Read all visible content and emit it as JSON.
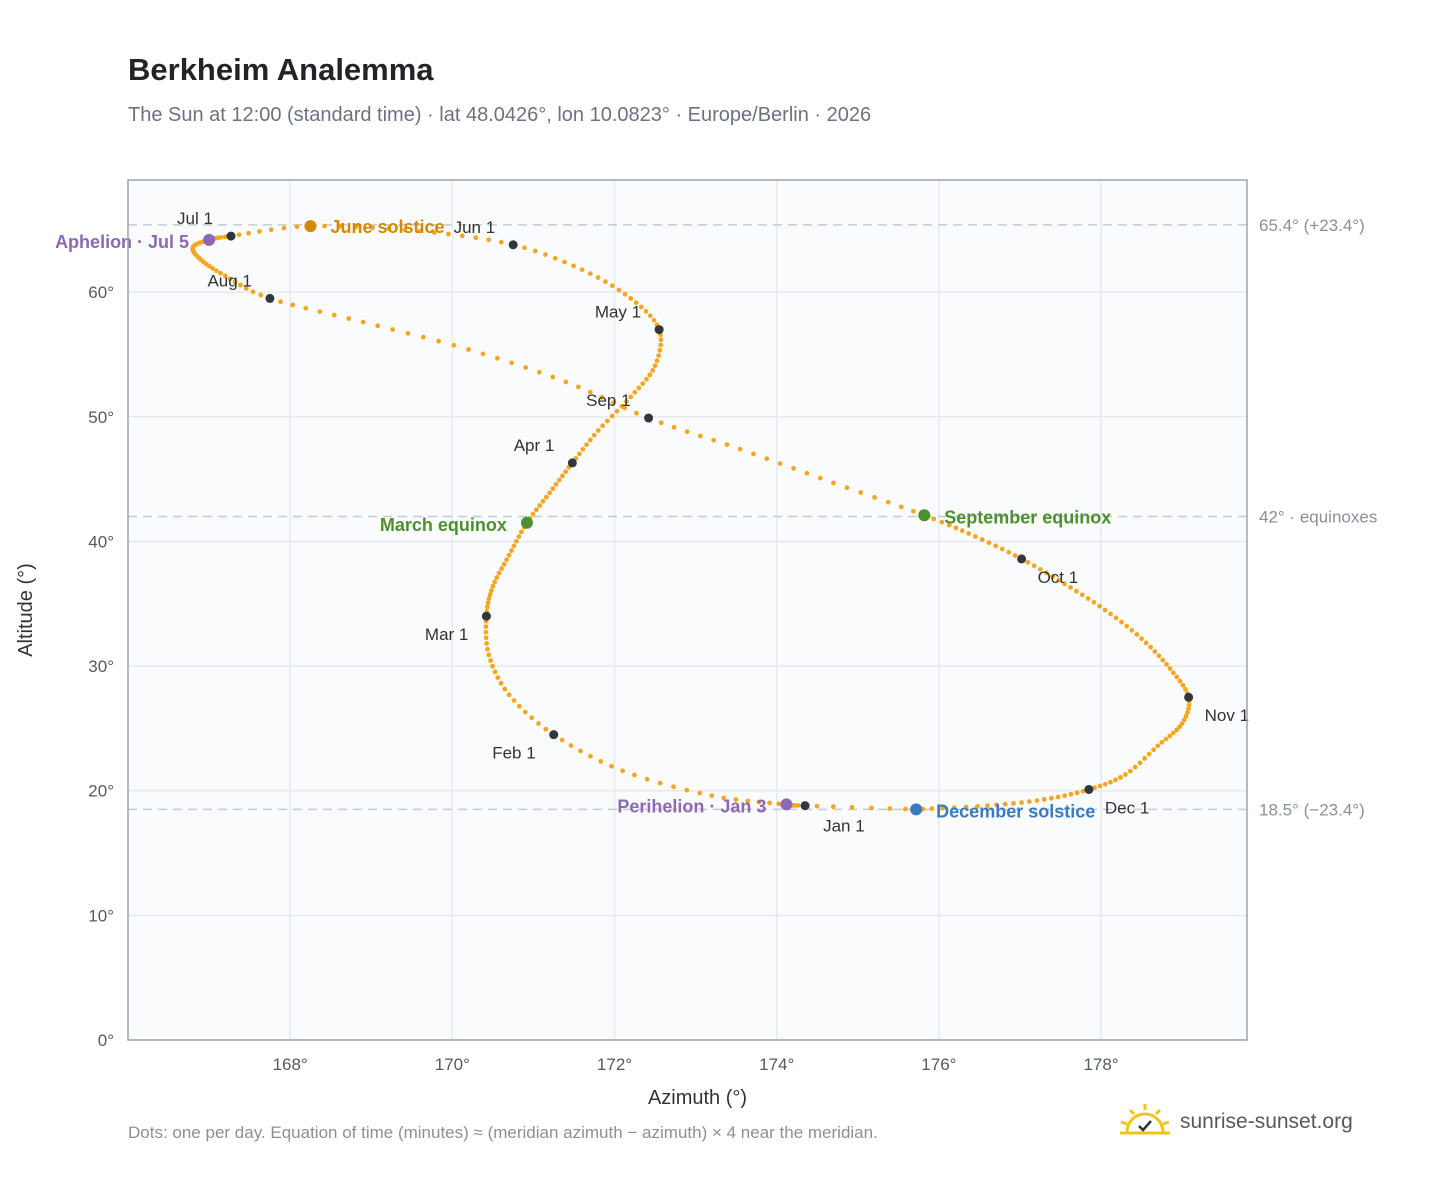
{
  "header": {
    "title": "Berkheim Analemma",
    "subtitle": "The Sun at 12:00 (standard time) · lat 48.0426°, lon 10.0823° · Europe/Berlin · 2026"
  },
  "footer": {
    "note": "Dots: one per day. Equation of time (minutes) ≈ (meridian azimuth − azimuth) × 4 near the meridian.",
    "brand": "sunrise-sunset.org",
    "brand_icon": "sun-check-icon"
  },
  "colors": {
    "curve": "#f5a623",
    "month_marker": "#33363b",
    "june_solstice": "#d18a00",
    "december_solstice": "#3a7bbf",
    "equinox": "#4e8f2f",
    "apsis": "#8e68b5",
    "ref_line": "#c4cbd3",
    "plot_bg": "#f9fbfd",
    "frame": "#9aa3ae"
  },
  "chart_data": {
    "type": "scatter",
    "xlabel": "Azimuth (°)",
    "ylabel": "Altitude (°)",
    "xlim": [
      166.0,
      179.8
    ],
    "ylim": [
      0,
      69
    ],
    "grid": true,
    "xticks": [
      168,
      170,
      172,
      174,
      176,
      178
    ],
    "yticks": [
      0,
      10,
      20,
      30,
      40,
      50,
      60
    ],
    "tick_suffix": "°",
    "month_markers": [
      {
        "label": "Jan 1",
        "azimuth": 174.35,
        "altitude": 18.8
      },
      {
        "label": "Feb 1",
        "azimuth": 171.25,
        "altitude": 24.5
      },
      {
        "label": "Mar 1",
        "azimuth": 170.42,
        "altitude": 34.0
      },
      {
        "label": "Apr 1",
        "azimuth": 171.48,
        "altitude": 46.3
      },
      {
        "label": "May 1",
        "azimuth": 172.55,
        "altitude": 57.0
      },
      {
        "label": "Jun 1",
        "azimuth": 170.75,
        "altitude": 63.8
      },
      {
        "label": "Jul 1",
        "azimuth": 167.27,
        "altitude": 64.5
      },
      {
        "label": "Aug 1",
        "azimuth": 167.75,
        "altitude": 59.5
      },
      {
        "label": "Sep 1",
        "azimuth": 172.42,
        "altitude": 49.9
      },
      {
        "label": "Oct 1",
        "azimuth": 177.02,
        "altitude": 38.6
      },
      {
        "label": "Nov 1",
        "azimuth": 179.08,
        "altitude": 27.5
      },
      {
        "label": "Dec 1",
        "azimuth": 177.85,
        "altitude": 20.1
      }
    ],
    "special_points": [
      {
        "label": "June solstice",
        "azimuth": 168.25,
        "altitude": 65.3,
        "color": "#d18a00"
      },
      {
        "label": "December solstice",
        "azimuth": 175.72,
        "altitude": 18.5,
        "color": "#3a7bbf"
      },
      {
        "label": "March equinox",
        "azimuth": 170.92,
        "altitude": 41.5,
        "color": "#4e8f2f"
      },
      {
        "label": "September equinox",
        "azimuth": 175.82,
        "altitude": 42.1,
        "color": "#4e8f2f"
      },
      {
        "label": "Aphelion · Jul 5",
        "azimuth": 167.0,
        "altitude": 64.2,
        "color": "#8e68b5"
      },
      {
        "label": "Perihelion · Jan 3",
        "azimuth": 174.12,
        "altitude": 18.9,
        "color": "#8e68b5"
      }
    ],
    "reference_lines": [
      {
        "altitude": 65.4,
        "label": "65.4° (+23.4°)"
      },
      {
        "altitude": 42.0,
        "label": "42° · equinoxes"
      },
      {
        "altitude": 18.5,
        "label": "18.5° (−23.4°)"
      }
    ],
    "daily_path": {
      "description_points": [
        [
          175.72,
          18.5
        ],
        [
          174.35,
          18.8
        ],
        [
          174.12,
          18.9
        ],
        [
          173.2,
          19.6
        ],
        [
          172.1,
          21.6
        ],
        [
          171.25,
          24.5
        ],
        [
          170.7,
          27.7
        ],
        [
          170.45,
          30.9
        ],
        [
          170.42,
          34.0
        ],
        [
          170.5,
          36.4
        ],
        [
          170.7,
          38.9
        ],
        [
          170.92,
          41.5
        ],
        [
          171.2,
          43.9
        ],
        [
          171.48,
          46.3
        ],
        [
          171.8,
          48.9
        ],
        [
          172.2,
          51.6
        ],
        [
          172.5,
          54.1
        ],
        [
          172.55,
          57.0
        ],
        [
          172.2,
          59.5
        ],
        [
          171.6,
          61.8
        ],
        [
          170.75,
          63.8
        ],
        [
          169.6,
          64.9
        ],
        [
          168.25,
          65.3
        ],
        [
          167.27,
          64.5
        ],
        [
          167.0,
          64.2
        ],
        [
          166.8,
          63.6
        ],
        [
          166.9,
          62.6
        ],
        [
          167.2,
          61.3
        ],
        [
          167.75,
          59.5
        ],
        [
          168.9,
          57.6
        ],
        [
          170.2,
          55.4
        ],
        [
          171.4,
          52.8
        ],
        [
          172.42,
          49.9
        ],
        [
          173.55,
          47.4
        ],
        [
          174.7,
          44.7
        ],
        [
          175.82,
          42.1
        ],
        [
          176.45,
          40.4
        ],
        [
          177.02,
          38.6
        ],
        [
          177.55,
          36.6
        ],
        [
          178.05,
          34.5
        ],
        [
          178.5,
          32.2
        ],
        [
          178.85,
          29.8
        ],
        [
          179.08,
          27.5
        ],
        [
          179.0,
          25.4
        ],
        [
          178.7,
          23.6
        ],
        [
          178.3,
          21.3
        ],
        [
          177.85,
          20.1
        ],
        [
          177.3,
          19.3
        ],
        [
          176.6,
          18.8
        ],
        [
          175.72,
          18.5
        ]
      ]
    }
  }
}
